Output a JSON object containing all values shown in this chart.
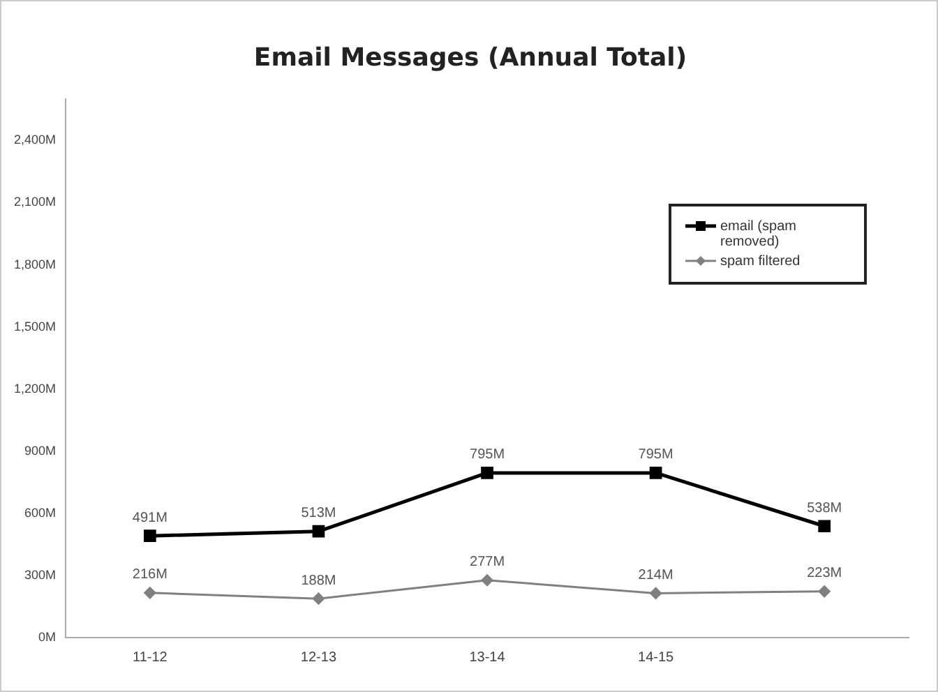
{
  "chart_data": {
    "type": "line",
    "title": "Email Messages (Annual Total)",
    "categories": [
      "11-12",
      "12-13",
      "13-14",
      "14-15",
      null
    ],
    "series": [
      {
        "name": "email (spam removed)",
        "color": "#000000",
        "marker": "square",
        "values": [
          491,
          513,
          795,
          795,
          538
        ],
        "value_labels": [
          "491M",
          "513M",
          "795M",
          "795M",
          "538M"
        ]
      },
      {
        "name": "spam filtered",
        "color": "#808080",
        "marker": "diamond",
        "values": [
          216,
          188,
          277,
          214,
          223
        ],
        "value_labels": [
          "216M",
          "188M",
          "277M",
          "214M",
          "223M"
        ]
      }
    ],
    "ylim": [
      0,
      2600
    ],
    "yticks": [
      {
        "value": 0,
        "label": "0M"
      },
      {
        "value": 300,
        "label": "300M"
      },
      {
        "value": 600,
        "label": "600M"
      },
      {
        "value": 900,
        "label": "900M"
      },
      {
        "value": 1200,
        "label": "1,200M"
      },
      {
        "value": 1500,
        "label": "1,500M"
      },
      {
        "value": 1800,
        "label": "1,800M"
      },
      {
        "value": 2100,
        "label": "2,100M"
      },
      {
        "value": 2400,
        "label": "2,400M"
      }
    ],
    "grid": false,
    "legend": "top right"
  }
}
